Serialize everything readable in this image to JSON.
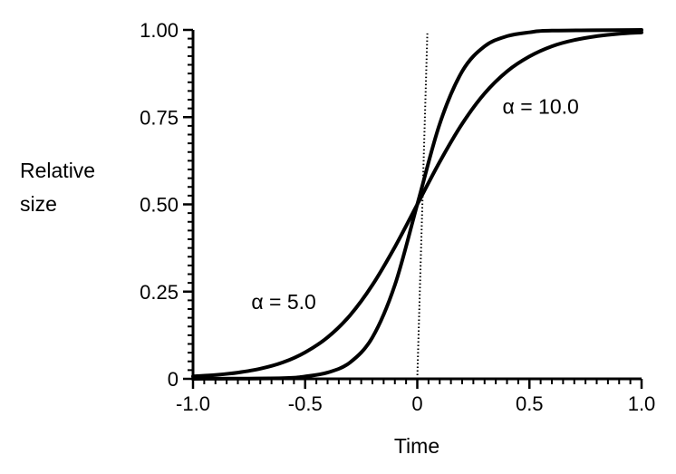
{
  "chart_data": {
    "type": "line",
    "title": "",
    "xlabel": "Time",
    "ylabel_lines": [
      "Relative",
      "size"
    ],
    "xlim": [
      -1.0,
      1.0
    ],
    "ylim": [
      0,
      1.0
    ],
    "x_ticks": [
      {
        "value": -1.0,
        "label": "-1.0"
      },
      {
        "value": -0.5,
        "label": "-0.5"
      },
      {
        "value": 0,
        "label": "0"
      },
      {
        "value": 0.5,
        "label": "0.5"
      },
      {
        "value": 1.0,
        "label": "1.0"
      }
    ],
    "y_ticks": [
      {
        "value": 0,
        "label": "0"
      },
      {
        "value": 0.25,
        "label": "0.25"
      },
      {
        "value": 0.5,
        "label": "0.50"
      },
      {
        "value": 0.75,
        "label": "0.75"
      },
      {
        "value": 1.0,
        "label": "1.00"
      }
    ],
    "grid": false,
    "series": [
      {
        "label": "α = 5.0",
        "x": [
          -1.0,
          -0.9,
          -0.8,
          -0.7,
          -0.6,
          -0.5,
          -0.4,
          -0.3,
          -0.2,
          -0.1,
          0.0,
          0.1,
          0.2,
          0.3,
          0.4,
          0.5,
          0.6,
          0.7,
          0.8,
          0.9,
          1.0
        ],
        "values": [
          0.007,
          0.011,
          0.018,
          0.029,
          0.047,
          0.076,
          0.119,
          0.182,
          0.269,
          0.378,
          0.5,
          0.622,
          0.731,
          0.818,
          0.881,
          0.924,
          0.953,
          0.971,
          0.982,
          0.989,
          0.993
        ]
      },
      {
        "label": "α = 10.0",
        "x": [
          -1.0,
          -0.6,
          -0.5,
          -0.4,
          -0.3,
          -0.2,
          -0.1,
          0.0,
          0.1,
          0.2,
          0.3,
          0.4,
          0.5,
          0.6,
          1.0
        ],
        "values": [
          0.0,
          0.002,
          0.007,
          0.018,
          0.047,
          0.119,
          0.269,
          0.5,
          0.731,
          0.881,
          0.953,
          0.982,
          0.993,
          0.998,
          1.0
        ]
      },
      {
        "label": "",
        "style": "dotted",
        "x": [
          0.0,
          0.045
        ],
        "values": [
          0.0,
          0.99
        ]
      }
    ],
    "annotations": [
      {
        "text": "α = 5.0",
        "x": -0.74,
        "y": 0.2
      },
      {
        "text": "α = 10.0",
        "x": 0.38,
        "y": 0.76
      }
    ]
  }
}
